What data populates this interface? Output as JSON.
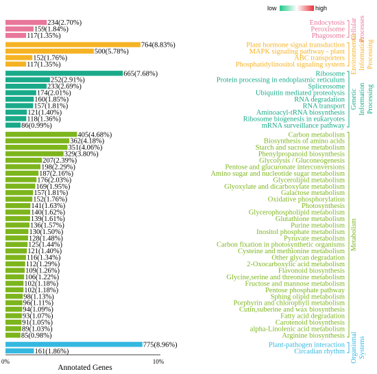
{
  "chart_data": {
    "type": "bar",
    "orientation": "horizontal",
    "xlabel": "Annotated Genes",
    "xticks": [
      "0%",
      "10%"
    ],
    "xlim": [
      0,
      10
    ],
    "legend": {
      "low_label": "low",
      "high_label": "high",
      "position": "top-right"
    },
    "groups": [
      {
        "name": "Cellular Processes",
        "color": "#e8779a",
        "categories": [
          {
            "name": "Endocytosis",
            "count": 234,
            "percent": 2.7,
            "label": "234(2.70%)"
          },
          {
            "name": "Peroxisome",
            "count": 159,
            "percent": 1.84,
            "label": "159(1.84%)"
          },
          {
            "name": "Phagosome",
            "count": 117,
            "percent": 1.35,
            "label": "117(1.35%)"
          }
        ]
      },
      {
        "name": "Environmental Information Processing",
        "color": "#f5b324",
        "categories": [
          {
            "name": "Plant hormone signal transduction",
            "count": 764,
            "percent": 8.83,
            "label": "764(8.83%)"
          },
          {
            "name": "MAPK signaling pathway - plant",
            "count": 500,
            "percent": 5.78,
            "label": "500(5.78%)"
          },
          {
            "name": "ABC transporters",
            "count": 152,
            "percent": 1.76,
            "label": "152(1.76%)"
          },
          {
            "name": "Phosphatidylinositol signaling system",
            "count": 117,
            "percent": 1.35,
            "label": "117(1.35%)"
          }
        ]
      },
      {
        "name": "Genetic Information Processing",
        "color": "#1aaa8a",
        "categories": [
          {
            "name": "Ribosome",
            "count": 665,
            "percent": 7.68,
            "label": "665(7.68%)"
          },
          {
            "name": "Protein processing in endoplasmic reticulum",
            "count": 252,
            "percent": 2.91,
            "label": "252(2.91%)"
          },
          {
            "name": "Spliceosome",
            "count": 233,
            "percent": 2.69,
            "label": "233(2.69%)"
          },
          {
            "name": "Ubiquitin mediated proteolysis",
            "count": 174,
            "percent": 2.01,
            "label": "174(2.01%)"
          },
          {
            "name": "RNA degradation",
            "count": 160,
            "percent": 1.85,
            "label": "160(1.85%)"
          },
          {
            "name": "RNA transport",
            "count": 157,
            "percent": 1.81,
            "label": "157(1.81%)"
          },
          {
            "name": "Aminoacyl-tRNA biosynthesis",
            "count": 121,
            "percent": 1.4,
            "label": "121(1.40%)"
          },
          {
            "name": "Ribosome biogenesis in eukaryotes",
            "count": 118,
            "percent": 1.36,
            "label": "118(1.36%)"
          },
          {
            "name": "mRNA surveillance pathway",
            "count": 86,
            "percent": 0.99,
            "label": "86(0.99%)"
          }
        ]
      },
      {
        "name": "Metabolism",
        "color": "#7db51d",
        "categories": [
          {
            "name": "Carbon metabolism",
            "count": 405,
            "percent": 4.68,
            "label": "405(4.68%)"
          },
          {
            "name": "Biosynthesis of amino acids",
            "count": 362,
            "percent": 4.18,
            "label": "362(4.18%)"
          },
          {
            "name": "Starch and sucrose metabolism",
            "count": 351,
            "percent": 4.06,
            "label": "351(4.06%)"
          },
          {
            "name": "Phenylpropanoid biosynthesis",
            "count": 329,
            "percent": 3.8,
            "label": "329(3.80%)"
          },
          {
            "name": "Glycolysis / Gluconeogenesis",
            "count": 207,
            "percent": 2.39,
            "label": "207(2.39%)"
          },
          {
            "name": "Pentose and glucuronate interconversions",
            "count": 198,
            "percent": 2.29,
            "label": "198(2.29%)"
          },
          {
            "name": "Amino sugar and nucleotide sugar metabolism",
            "count": 187,
            "percent": 2.16,
            "label": "187(2.16%)"
          },
          {
            "name": "Glycerolipid metabolism",
            "count": 176,
            "percent": 2.03,
            "label": "176(2.03%)"
          },
          {
            "name": "Glyoxylate and dicarboxylate metabolism",
            "count": 169,
            "percent": 1.95,
            "label": "169(1.95%)"
          },
          {
            "name": "Galactose metabolism",
            "count": 157,
            "percent": 1.81,
            "label": "157(1.81%)"
          },
          {
            "name": "Oxidative phosphorylation",
            "count": 152,
            "percent": 1.76,
            "label": "152(1.76%)"
          },
          {
            "name": "Photosynthesis",
            "count": 141,
            "percent": 1.63,
            "label": "141(1.63%)"
          },
          {
            "name": "Glycerophospholipid metabolism",
            "count": 140,
            "percent": 1.62,
            "label": "140(1.62%)"
          },
          {
            "name": "Glutathione metabolism",
            "count": 139,
            "percent": 1.61,
            "label": "139(1.61%)"
          },
          {
            "name": "Purine metabolism",
            "count": 136,
            "percent": 1.57,
            "label": "136(1.57%)"
          },
          {
            "name": "Inositol phosphate metabolism",
            "count": 130,
            "percent": 1.5,
            "label": "130(1.50%)"
          },
          {
            "name": "Pyruvate metabolism",
            "count": 128,
            "percent": 1.48,
            "label": "128(1.48%)"
          },
          {
            "name": "Carbon fixation in photosynthetic organisms",
            "count": 125,
            "percent": 1.44,
            "label": "125(1.44%)"
          },
          {
            "name": "Cysteine and methionine metabolism",
            "count": 121,
            "percent": 1.4,
            "label": "121(1.40%)"
          },
          {
            "name": "Other glycan degradation",
            "count": 116,
            "percent": 1.34,
            "label": "116(1.34%)"
          },
          {
            "name": "2-Oxocarboxylic acid metabolism",
            "count": 112,
            "percent": 1.29,
            "label": "112(1.29%)"
          },
          {
            "name": "Flavonoid biosynthesis",
            "count": 109,
            "percent": 1.26,
            "label": "109(1.26%)"
          },
          {
            "name": "Glycine,serine and threonine metabolism",
            "count": 106,
            "percent": 1.22,
            "label": "106(1.22%)"
          },
          {
            "name": "Fructose and mannose metabolism",
            "count": 102,
            "percent": 1.18,
            "label": "102(1.18%)"
          },
          {
            "name": "Pentose phosphate pathway",
            "count": 102,
            "percent": 1.18,
            "label": "102(1.18%)"
          },
          {
            "name": "Sphing olipid metabolism",
            "count": 98,
            "percent": 1.13,
            "label": "98(1.13%)"
          },
          {
            "name": "Porphyrin and chlorophyll metabolism",
            "count": 96,
            "percent": 1.11,
            "label": "96(1.11%)"
          },
          {
            "name": "Cutin,suberine and wax biosynthesis",
            "count": 94,
            "percent": 1.09,
            "label": "94(1.09%)"
          },
          {
            "name": "Fatty acid degradation",
            "count": 93,
            "percent": 1.07,
            "label": "93(1.07%)"
          },
          {
            "name": "Carotenoid biosynthesis",
            "count": 91,
            "percent": 1.05,
            "label": "91(1.05%)"
          },
          {
            "name": "alpha-Linolenic acid metabolism",
            "count": 89,
            "percent": 1.03,
            "label": "89(1.03%)"
          },
          {
            "name": "Arginine biosynthesis",
            "count": 85,
            "percent": 0.98,
            "label": "85(0.98%)"
          }
        ]
      },
      {
        "name": "Organismal Systems",
        "color": "#35b8e0",
        "categories": [
          {
            "name": "Plant-pathogen interaction",
            "count": 775,
            "percent": 8.96,
            "label": "775(8.96%)"
          },
          {
            "name": "Circadian rhythm",
            "count": 161,
            "percent": 1.86,
            "label": "161(1.86%)"
          }
        ]
      }
    ]
  }
}
